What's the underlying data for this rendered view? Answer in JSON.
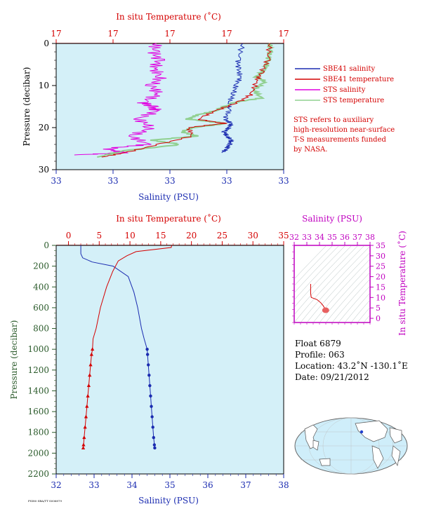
{
  "colors": {
    "salinity": "#1a2bb0",
    "temperature": "#d40000",
    "sts_salinity": "#e000e0",
    "sts_temperature": "#90d090",
    "plot_bg": "#d4f0f8",
    "axis_red": "#d40000",
    "axis_blue": "#1a2bb0",
    "axis_green": "#2a5a2a",
    "axis_magenta": "#c000c0"
  },
  "chart_data": [
    {
      "id": "near-surface",
      "type": "line",
      "top_axis_title": "In situ Temperature (˚C)",
      "top_ticks": [
        "17",
        "17",
        "17",
        "17",
        "17"
      ],
      "bottom_axis_title": "Salinity (PSU)",
      "bottom_ticks": [
        "33",
        "33",
        "33",
        "33",
        "33"
      ],
      "ylabel": "Pressure (decibar)",
      "y_ticks": [
        "0",
        "10",
        "20",
        "30"
      ],
      "ylim": [
        0,
        30
      ],
      "legend": [
        {
          "name": "SBE41 salinity",
          "color": "#1a2bb0"
        },
        {
          "name": "SBE41 temperature",
          "color": "#d40000"
        },
        {
          "name": "STS salinity",
          "color": "#e000e0"
        },
        {
          "name": "STS temperature",
          "color": "#90d090"
        }
      ],
      "note": [
        "STS refers to auxiliary",
        "high-resolution near-surface",
        "T-S measurements funded",
        "by NASA."
      ],
      "series": [
        {
          "name": "SBE41 salinity",
          "x_frac": [
            0.82,
            0.8,
            0.8,
            0.81,
            0.79,
            0.78,
            0.76,
            0.76,
            0.74,
            0.77,
            0.76,
            0.74,
            0.75,
            0.77,
            0.76,
            0.75,
            0.73
          ],
          "p": [
            0,
            4,
            6,
            8,
            10,
            12,
            14,
            16,
            18,
            19,
            20,
            21,
            22,
            23,
            24,
            25,
            26
          ]
        },
        {
          "name": "STS salinity",
          "x_frac": [
            0.44,
            0.43,
            0.45,
            0.43,
            0.46,
            0.42,
            0.45,
            0.38,
            0.42,
            0.44,
            0.36,
            0.42,
            0.33,
            0.4,
            0.22,
            0.3,
            0.08
          ],
          "p": [
            0,
            2,
            4,
            6,
            8,
            10,
            12,
            14,
            15,
            16,
            18,
            20,
            22,
            24,
            25,
            26,
            26.5
          ]
        },
        {
          "name": "STS temperature",
          "x_frac": [
            0.94,
            0.94,
            0.93,
            0.92,
            0.88,
            0.92,
            0.87,
            0.9,
            0.78,
            0.7,
            0.62,
            0.58,
            0.75,
            0.6,
            0.55,
            0.62,
            0.42,
            0.55,
            0.3,
            0.18
          ],
          "p": [
            0,
            2,
            4,
            6,
            8,
            9,
            11,
            13,
            14,
            16,
            17,
            18,
            19,
            20,
            21,
            22,
            23,
            24,
            25.5,
            27
          ]
        },
        {
          "name": "SBE41 temperature",
          "x_frac": [
            0.94,
            0.93,
            0.9,
            0.88,
            0.86,
            0.8,
            0.7,
            0.62,
            0.74,
            0.58,
            0.6,
            0.45,
            0.3,
            0.2
          ],
          "p": [
            0,
            4,
            7,
            9,
            12,
            14,
            16,
            18,
            19,
            20,
            22,
            24,
            26,
            27
          ]
        }
      ]
    },
    {
      "id": "full-profile",
      "type": "line",
      "top_axis_title": "In situ Temperature (˚C)",
      "top_ticks": [
        "0",
        "5",
        "10",
        "15",
        "20",
        "25",
        "30",
        "35"
      ],
      "xlim_temperature": [
        -2,
        35
      ],
      "bottom_axis_title": "Salinity (PSU)",
      "bottom_ticks": [
        "32",
        "33",
        "34",
        "35",
        "36",
        "37",
        "38"
      ],
      "xlim_salinity": [
        32,
        38
      ],
      "ylabel": "Pressure (decibar)",
      "y_ticks": [
        "0",
        "200",
        "400",
        "600",
        "800",
        "1000",
        "1200",
        "1400",
        "1600",
        "1800",
        "2000",
        "2200"
      ],
      "ylim": [
        0,
        2200
      ],
      "series": [
        {
          "name": "Salinity",
          "x": [
            32.65,
            32.65,
            32.7,
            32.95,
            33.5,
            33.9,
            34.05,
            34.15,
            34.25,
            34.32,
            34.4,
            34.41,
            34.43,
            34.45,
            34.47,
            34.49,
            34.51,
            34.53,
            34.55,
            34.57,
            34.59,
            34.6
          ],
          "p": [
            0,
            80,
            120,
            160,
            200,
            300,
            450,
            600,
            800,
            900,
            1000,
            1050,
            1150,
            1250,
            1350,
            1450,
            1550,
            1650,
            1750,
            1850,
            1920,
            1950
          ]
        },
        {
          "name": "Temperature",
          "x": [
            16.8,
            16.7,
            11,
            9.5,
            8.1,
            7.2,
            6.2,
            5.2,
            4.5,
            4.0,
            3.9,
            3.75,
            3.6,
            3.45,
            3.3,
            3.15,
            3.0,
            2.85,
            2.7,
            2.55,
            2.45,
            2.4
          ],
          "p": [
            0,
            20,
            60,
            100,
            150,
            250,
            400,
            600,
            800,
            900,
            1000,
            1050,
            1150,
            1250,
            1350,
            1450,
            1550,
            1650,
            1750,
            1850,
            1920,
            1950
          ]
        }
      ]
    },
    {
      "id": "ts-diagram",
      "type": "scatter",
      "top_axis_title": "Salinity (PSU)",
      "top_ticks": [
        "32",
        "33",
        "34",
        "35",
        "36",
        "37",
        "38"
      ],
      "xlim": [
        32,
        38
      ],
      "right_axis_title": "In situ Temperature (˚C)",
      "right_ticks": [
        "0",
        "5",
        "10",
        "15",
        "20",
        "25",
        "30",
        "35"
      ],
      "ylim": [
        -2,
        35
      ],
      "trace": {
        "x": [
          33.3,
          33.3,
          33.35,
          33.8,
          34.1,
          34.3,
          34.45,
          34.6
        ],
        "y": [
          16.5,
          12,
          10,
          9,
          7.5,
          6,
          4.5,
          3.2
        ]
      }
    }
  ],
  "float_info": {
    "float": "Float  6879",
    "profile": "Profile:  063",
    "location": "Location:  43.2˚N  -130.1˚E",
    "date": "Date:  09/21/2012"
  },
  "footer_text": "FSI80 SBA/TT S006879"
}
